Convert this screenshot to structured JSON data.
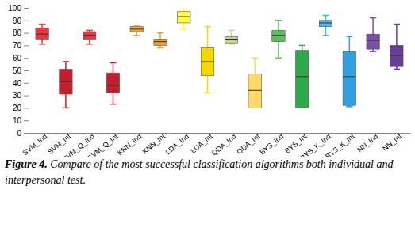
{
  "chart_data": {
    "type": "box",
    "categories": [
      "SVM_Ind",
      "SVM_Int",
      "SVM_Q_Ind",
      "SVM_Q_Int",
      "KNN_Ind",
      "KNN_Int",
      "LDA_Ind",
      "LDA_Int",
      "QDA_Ind",
      "QDA_Int",
      "BYS_Ind",
      "BYS_Int",
      "BYS_K_Ind",
      "BYS_K_Int",
      "NN_Ind",
      "NN_Int"
    ],
    "min": [
      71,
      20,
      71,
      23,
      78,
      68,
      83,
      32,
      71,
      20,
      60,
      20,
      78,
      21,
      65,
      51
    ],
    "q1": [
      75,
      31,
      75,
      32,
      81,
      70,
      88,
      46,
      72,
      20,
      73,
      20,
      85,
      22,
      67,
      53
    ],
    "median": [
      79,
      41,
      78,
      38,
      83,
      73,
      93,
      57,
      75,
      34,
      78,
      45,
      88,
      45,
      74,
      62
    ],
    "q3": [
      84,
      51,
      81,
      48,
      85,
      75,
      97,
      68,
      77,
      47,
      82,
      66,
      90,
      65,
      79,
      70
    ],
    "max": [
      87,
      57,
      82,
      56,
      86,
      80,
      100,
      85,
      82,
      60,
      90,
      70,
      94,
      77,
      92,
      87
    ],
    "colors": [
      "#e8383d",
      "#c0202c",
      "#e8383d",
      "#c0202c",
      "#f6a531",
      "#f0a030",
      "#ffff33",
      "#f5d800",
      "#c3d69b",
      "#ffd966",
      "#5cbf5c",
      "#2ea84a",
      "#4db6ec",
      "#32a0e0",
      "#7a4fa8",
      "#6a3d99"
    ],
    "ylim": [
      0,
      100
    ],
    "yticks": [
      0,
      10,
      20,
      30,
      40,
      50,
      60,
      70,
      80,
      90,
      100
    ],
    "grid": false,
    "caption": {
      "label": "Figure 4.",
      "text": "Compare of the most successful classification algorithms both individual and interpersonal test."
    }
  }
}
